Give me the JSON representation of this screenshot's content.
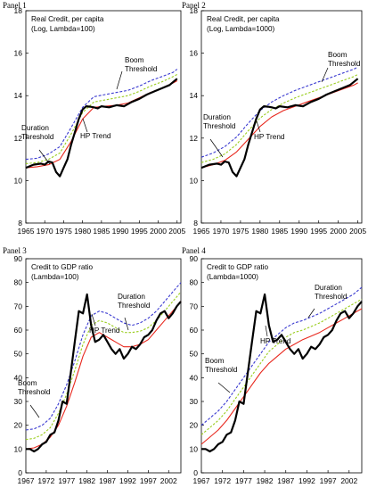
{
  "chart_data": [
    {
      "panel": "Panel 1",
      "type": "line",
      "title": "Real Credit, per capita",
      "subtitle": "(Log, Lambda=100)",
      "xlim": [
        1965,
        2006
      ],
      "ylim": [
        8,
        18
      ],
      "x_ticks": [
        "1965",
        "1970",
        "1975",
        "1980",
        "1985",
        "1990",
        "1995",
        "2000",
        "2005"
      ],
      "y_ticks": [
        "8",
        "10",
        "12",
        "14",
        "16",
        "18"
      ],
      "annotations": [
        {
          "lines": [
            "Duration",
            "Threshold"
          ],
          "target": "Duration Threshold"
        },
        {
          "lines": [
            "HP Trend"
          ],
          "target": "HP Trend"
        },
        {
          "lines": [
            "Boom",
            "Threshold"
          ],
          "target": "Boom Threshold"
        }
      ],
      "series": [
        {
          "name": "Real Credit",
          "color": "#000000",
          "x": [
            1965,
            1967,
            1969,
            1970,
            1971,
            1972,
            1973,
            1974,
            1975,
            1976,
            1977,
            1978,
            1979,
            1980,
            1981,
            1982,
            1983,
            1984,
            1985,
            1987,
            1989,
            1991,
            1993,
            1995,
            1997,
            1999,
            2001,
            2003,
            2005
          ],
          "values": [
            10.6,
            10.75,
            10.8,
            10.75,
            10.9,
            10.85,
            10.4,
            10.2,
            10.6,
            11.0,
            11.7,
            12.3,
            12.9,
            13.35,
            13.5,
            13.48,
            13.45,
            13.4,
            13.5,
            13.45,
            13.55,
            13.5,
            13.7,
            13.85,
            14.05,
            14.2,
            14.35,
            14.5,
            14.8
          ]
        },
        {
          "name": "HP Trend",
          "color": "#e8281e",
          "x": [
            1965,
            1968,
            1971,
            1974,
            1977,
            1980,
            1983,
            1986,
            1989,
            1992,
            1995,
            1998,
            2001,
            2004,
            2005
          ],
          "values": [
            10.6,
            10.65,
            10.75,
            11.0,
            11.85,
            12.9,
            13.45,
            13.5,
            13.55,
            13.65,
            13.9,
            14.15,
            14.35,
            14.6,
            14.7
          ]
        },
        {
          "name": "Duration Threshold",
          "color": "#9acd1e",
          "x": [
            1965,
            1968,
            1971,
            1974,
            1977,
            1980,
            1983,
            1986,
            1989,
            1992,
            1995,
            1998,
            2001,
            2004,
            2005
          ],
          "values": [
            10.8,
            10.85,
            11.0,
            11.3,
            12.2,
            13.2,
            13.7,
            13.8,
            13.9,
            14.0,
            14.2,
            14.45,
            14.65,
            14.9,
            15.0
          ]
        },
        {
          "name": "Boom Threshold",
          "color": "#3a3ad0",
          "x": [
            1965,
            1968,
            1971,
            1974,
            1977,
            1980,
            1983,
            1986,
            1989,
            1992,
            1995,
            1998,
            2001,
            2004,
            2005
          ],
          "values": [
            11.0,
            11.05,
            11.25,
            11.6,
            12.5,
            13.45,
            13.95,
            14.05,
            14.15,
            14.25,
            14.45,
            14.7,
            14.9,
            15.1,
            15.25
          ]
        }
      ]
    },
    {
      "panel": "Panel 2",
      "type": "line",
      "title": "Real Credit, per capita",
      "subtitle": "(Log, Lambda=1000)",
      "xlim": [
        1965,
        2006
      ],
      "ylim": [
        8,
        18
      ],
      "x_ticks": [
        "1965",
        "1970",
        "1975",
        "1980",
        "1985",
        "1990",
        "1995",
        "2000",
        "2005"
      ],
      "y_ticks": [
        "8",
        "10",
        "12",
        "14",
        "16",
        "18"
      ],
      "annotations": [
        {
          "lines": [
            "Duration",
            "Threshold"
          ],
          "target": "Duration Threshold"
        },
        {
          "lines": [
            "HP Trend"
          ],
          "target": "HP Trend"
        },
        {
          "lines": [
            "Boom",
            "Threshold"
          ],
          "target": "Boom Threshold"
        }
      ],
      "series": [
        {
          "name": "Real Credit",
          "color": "#000000",
          "x": [
            1965,
            1967,
            1969,
            1970,
            1971,
            1972,
            1973,
            1974,
            1975,
            1976,
            1977,
            1978,
            1979,
            1980,
            1981,
            1982,
            1983,
            1984,
            1985,
            1987,
            1989,
            1991,
            1993,
            1995,
            1997,
            1999,
            2001,
            2003,
            2005
          ],
          "values": [
            10.6,
            10.75,
            10.8,
            10.75,
            10.9,
            10.85,
            10.4,
            10.2,
            10.6,
            11.0,
            11.7,
            12.3,
            12.9,
            13.35,
            13.5,
            13.48,
            13.45,
            13.4,
            13.5,
            13.45,
            13.55,
            13.5,
            13.7,
            13.85,
            14.05,
            14.2,
            14.35,
            14.5,
            14.8
          ]
        },
        {
          "name": "HP Trend",
          "color": "#e8281e",
          "x": [
            1965,
            1968,
            1971,
            1974,
            1977,
            1980,
            1983,
            1986,
            1989,
            1992,
            1995,
            1998,
            2001,
            2004,
            2005
          ],
          "values": [
            10.6,
            10.75,
            10.95,
            11.35,
            11.95,
            12.55,
            13.0,
            13.3,
            13.5,
            13.7,
            13.9,
            14.1,
            14.3,
            14.5,
            14.6
          ]
        },
        {
          "name": "Duration Threshold",
          "color": "#9acd1e",
          "x": [
            1965,
            1968,
            1971,
            1974,
            1977,
            1980,
            1983,
            1986,
            1989,
            1992,
            1995,
            1998,
            2001,
            2004,
            2005
          ],
          "values": [
            10.85,
            11.0,
            11.25,
            11.7,
            12.35,
            12.95,
            13.35,
            13.65,
            13.9,
            14.1,
            14.3,
            14.5,
            14.7,
            14.9,
            15.0
          ]
        },
        {
          "name": "Boom Threshold",
          "color": "#3a3ad0",
          "x": [
            1965,
            1968,
            1971,
            1974,
            1977,
            1980,
            1983,
            1986,
            1989,
            1992,
            1995,
            1998,
            2001,
            2004,
            2005
          ],
          "values": [
            11.1,
            11.3,
            11.6,
            12.05,
            12.7,
            13.3,
            13.7,
            14.0,
            14.25,
            14.45,
            14.65,
            14.85,
            15.05,
            15.25,
            15.35
          ]
        }
      ]
    },
    {
      "panel": "Panel 3",
      "type": "line",
      "title": "Credit to GDP ratio",
      "subtitle": "(Lambda=100)",
      "xlim": [
        1967,
        2005
      ],
      "ylim": [
        0,
        90
      ],
      "x_ticks": [
        "1967",
        "1972",
        "1977",
        "1982",
        "1987",
        "1992",
        "1997",
        "2002"
      ],
      "y_ticks": [
        "0",
        "10",
        "20",
        "30",
        "40",
        "50",
        "60",
        "70",
        "80",
        "90"
      ],
      "annotations": [
        {
          "lines": [
            "Duration",
            "Threshold"
          ],
          "target": "Duration Threshold"
        },
        {
          "lines": [
            "HP Trend"
          ],
          "target": "HP Trend"
        },
        {
          "lines": [
            "Boom",
            "Threshold"
          ],
          "target": "Boom Threshold"
        }
      ],
      "series": [
        {
          "name": "Credit to GDP",
          "color": "#000000",
          "x": [
            1967,
            1968,
            1969,
            1970,
            1971,
            1972,
            1973,
            1974,
            1975,
            1976,
            1977,
            1978,
            1979,
            1980,
            1981,
            1982,
            1983,
            1984,
            1985,
            1986,
            1987,
            1988,
            1989,
            1990,
            1991,
            1992,
            1993,
            1994,
            1995,
            1996,
            1997,
            1998,
            1999,
            2000,
            2001,
            2002,
            2003,
            2004,
            2005
          ],
          "values": [
            10,
            10,
            9,
            10,
            12,
            13,
            16,
            17,
            22,
            30,
            29,
            42,
            55,
            68,
            67,
            75,
            62,
            55,
            56,
            58,
            55,
            52,
            50,
            52,
            48,
            50,
            53,
            52,
            54,
            57,
            58,
            60,
            64,
            67,
            68,
            65,
            67,
            70,
            72
          ]
        },
        {
          "name": "HP Trend",
          "color": "#e8281e",
          "x": [
            1967,
            1969,
            1971,
            1973,
            1975,
            1977,
            1979,
            1981,
            1983,
            1985,
            1987,
            1989,
            1991,
            1993,
            1995,
            1997,
            1999,
            2001,
            2003,
            2005
          ],
          "values": [
            10,
            10.5,
            12,
            15,
            20,
            28,
            38,
            49,
            57,
            59,
            57,
            55,
            53,
            53,
            54,
            56,
            60,
            64,
            68,
            72
          ]
        },
        {
          "name": "Duration Threshold",
          "color": "#9acd1e",
          "x": [
            1967,
            1969,
            1971,
            1973,
            1975,
            1977,
            1979,
            1981,
            1983,
            1985,
            1987,
            1989,
            1991,
            1993,
            1995,
            1997,
            1999,
            2001,
            2003,
            2005
          ],
          "values": [
            14,
            14.5,
            16,
            19,
            25,
            33,
            43,
            54,
            62,
            64,
            63,
            61,
            59,
            59,
            59.5,
            61,
            64,
            68,
            72,
            76
          ]
        },
        {
          "name": "Boom Threshold",
          "color": "#3a3ad0",
          "x": [
            1967,
            1969,
            1971,
            1973,
            1975,
            1977,
            1979,
            1981,
            1983,
            1985,
            1987,
            1989,
            1991,
            1993,
            1995,
            1997,
            1999,
            2001,
            2003,
            2005
          ],
          "values": [
            18,
            18.5,
            20,
            23,
            29,
            37,
            47,
            58,
            66,
            68,
            67,
            65,
            63,
            62,
            63,
            65,
            68,
            72,
            76,
            80
          ]
        }
      ]
    },
    {
      "panel": "Panel 4",
      "type": "line",
      "title": "Credit to GDP ratio",
      "subtitle": "(Lambda=1000)",
      "xlim": [
        1967,
        2005
      ],
      "ylim": [
        0,
        90
      ],
      "x_ticks": [
        "1967",
        "1972",
        "1977",
        "1982",
        "1987",
        "1992",
        "1997",
        "2002"
      ],
      "y_ticks": [
        "0",
        "10",
        "20",
        "30",
        "40",
        "50",
        "60",
        "70",
        "80",
        "90"
      ],
      "annotations": [
        {
          "lines": [
            "Duration",
            "Threshold"
          ],
          "target": "Duration Threshold"
        },
        {
          "lines": [
            "HP Trend"
          ],
          "target": "HP Trend"
        },
        {
          "lines": [
            "Boom",
            "Threshold"
          ],
          "target": "Boom Threshold"
        }
      ],
      "series": [
        {
          "name": "Credit to GDP",
          "color": "#000000",
          "x": [
            1967,
            1968,
            1969,
            1970,
            1971,
            1972,
            1973,
            1974,
            1975,
            1976,
            1977,
            1978,
            1979,
            1980,
            1981,
            1982,
            1983,
            1984,
            1985,
            1986,
            1987,
            1988,
            1989,
            1990,
            1991,
            1992,
            1993,
            1994,
            1995,
            1996,
            1997,
            1998,
            1999,
            2000,
            2001,
            2002,
            2003,
            2004,
            2005
          ],
          "values": [
            10,
            10,
            9,
            10,
            12,
            13,
            16,
            17,
            22,
            30,
            29,
            42,
            55,
            68,
            67,
            75,
            62,
            55,
            56,
            58,
            55,
            52,
            50,
            52,
            48,
            50,
            53,
            52,
            54,
            57,
            58,
            60,
            64,
            67,
            68,
            65,
            67,
            70,
            72
          ]
        },
        {
          "name": "HP Trend",
          "color": "#e8281e",
          "x": [
            1967,
            1969,
            1971,
            1973,
            1975,
            1977,
            1979,
            1981,
            1983,
            1985,
            1987,
            1989,
            1991,
            1993,
            1995,
            1997,
            1999,
            2001,
            2003,
            2005
          ],
          "values": [
            12,
            15,
            18,
            22,
            27,
            32,
            37,
            42,
            46,
            49,
            52,
            54,
            56,
            57.5,
            59,
            61,
            63,
            65,
            67,
            69
          ]
        },
        {
          "name": "Duration Threshold",
          "color": "#9acd1e",
          "x": [
            1967,
            1969,
            1971,
            1973,
            1975,
            1977,
            1979,
            1981,
            1983,
            1985,
            1987,
            1989,
            1991,
            1993,
            1995,
            1997,
            1999,
            2001,
            2003,
            2005
          ],
          "values": [
            16,
            19,
            22,
            26,
            31,
            36,
            41,
            46,
            51,
            54,
            57,
            59,
            60,
            61.5,
            63,
            65,
            67,
            69,
            71,
            73
          ]
        },
        {
          "name": "Boom Threshold",
          "color": "#3a3ad0",
          "x": [
            1967,
            1969,
            1971,
            1973,
            1975,
            1977,
            1979,
            1981,
            1983,
            1985,
            1987,
            1989,
            1991,
            1993,
            1995,
            1997,
            1999,
            2001,
            2003,
            2005
          ],
          "values": [
            20,
            23,
            26,
            30,
            35,
            40,
            45,
            50,
            55,
            58,
            61,
            63,
            64,
            65.5,
            67,
            69,
            71,
            73,
            75,
            78
          ]
        }
      ]
    }
  ]
}
